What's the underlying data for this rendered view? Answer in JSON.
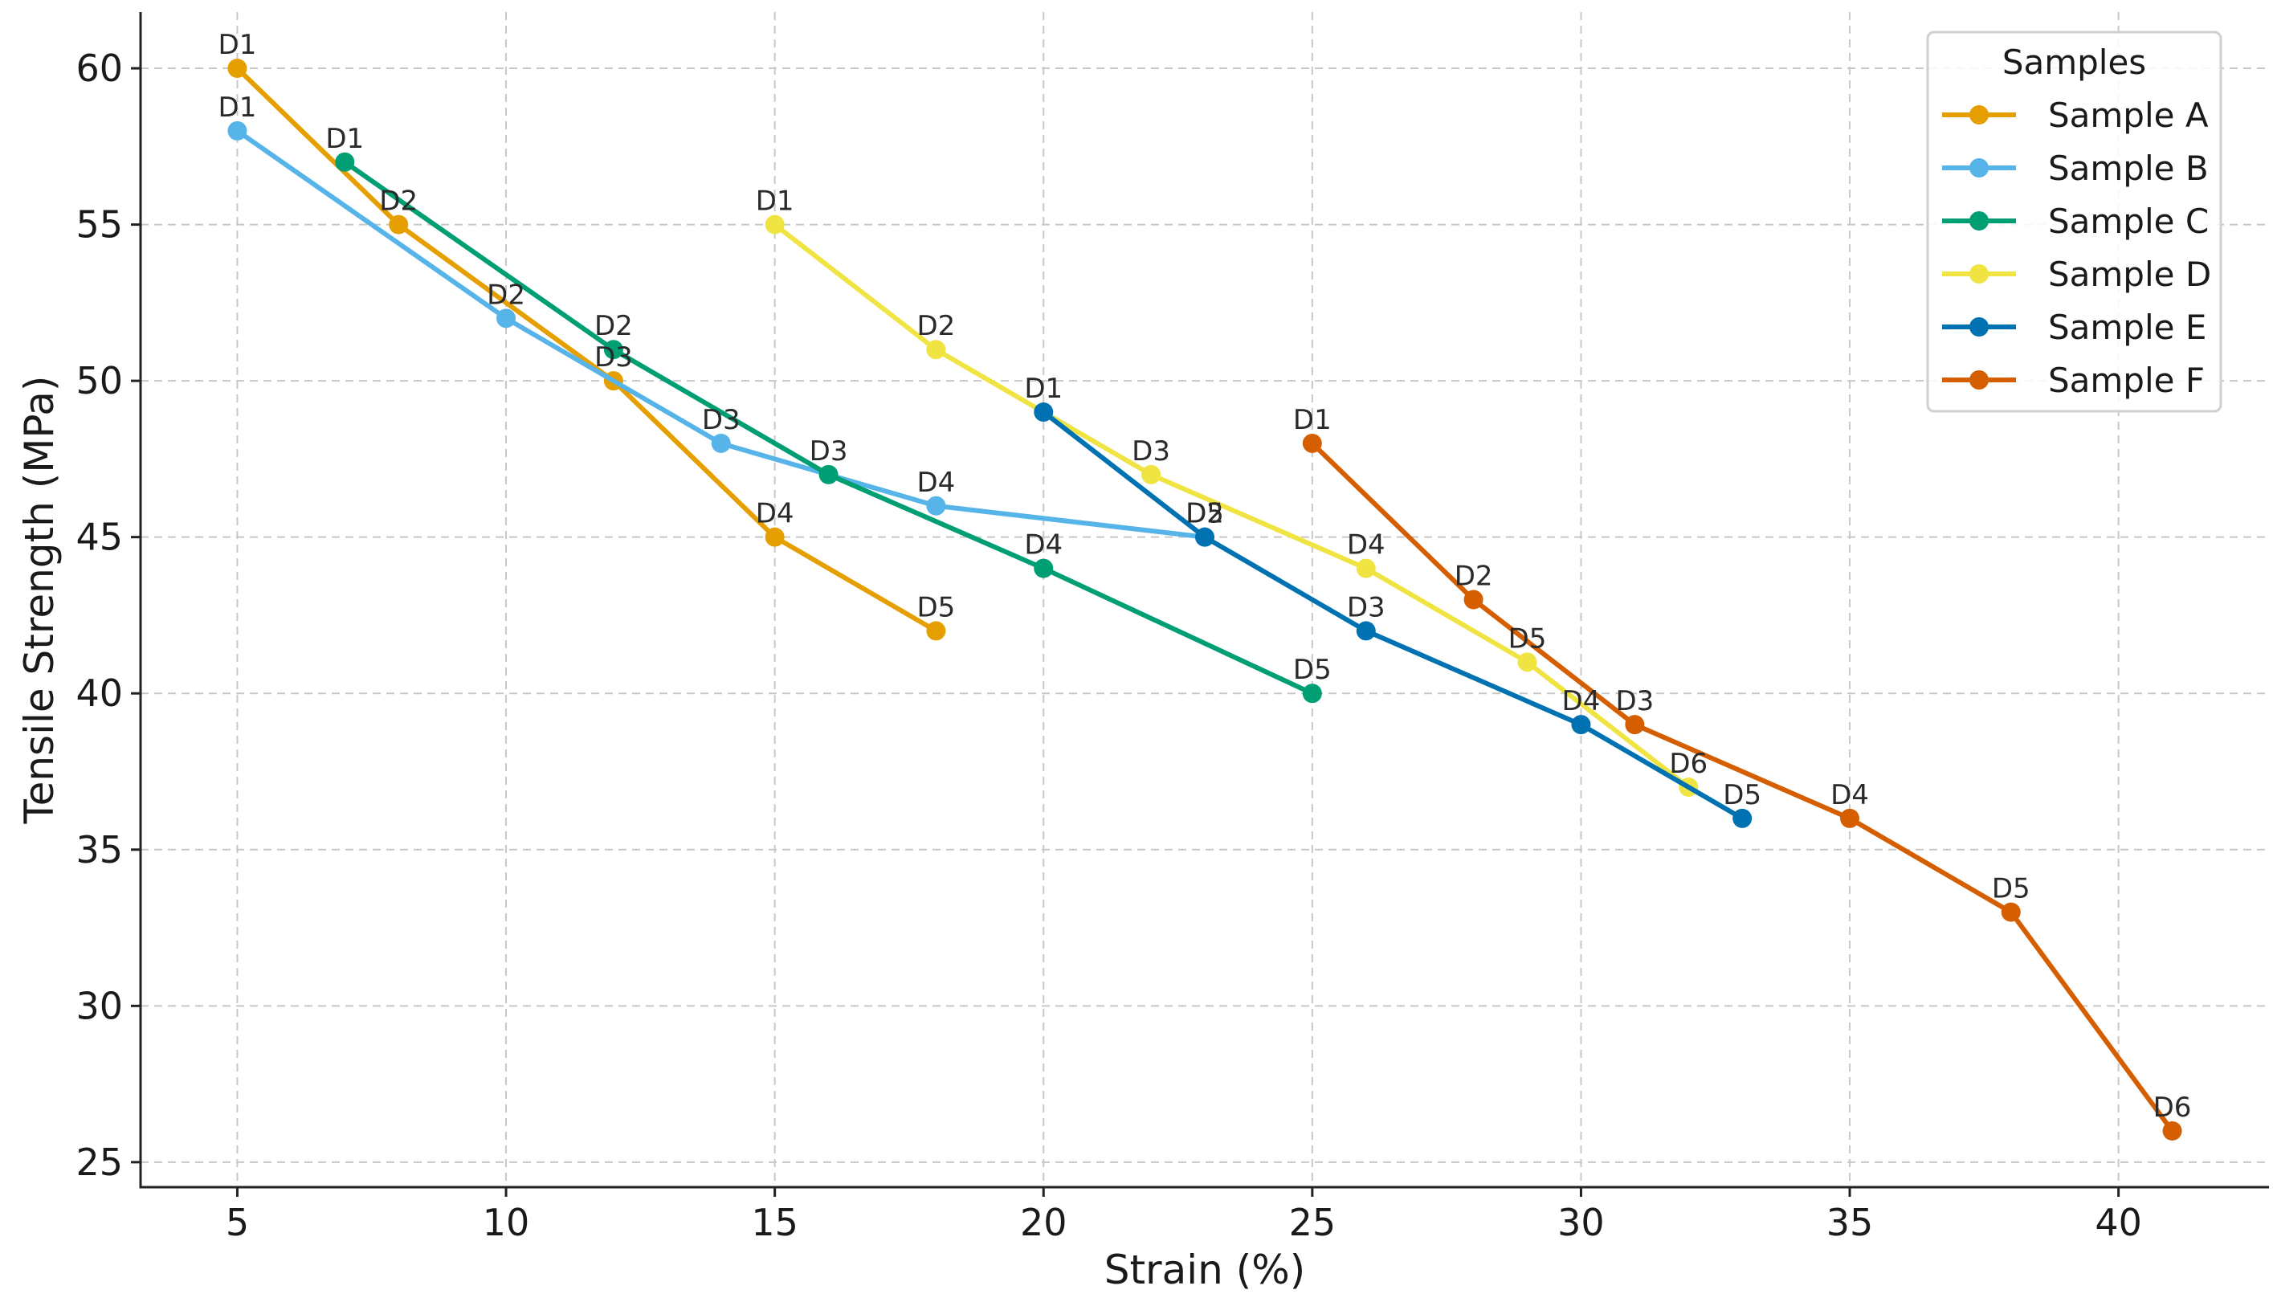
{
  "chart_data": {
    "type": "line",
    "title": "",
    "xlabel": "Strain (%)",
    "ylabel": "Tensile Strength (MPa)",
    "xlim": [
      3.2,
      42.8
    ],
    "ylim": [
      24.2,
      61.8
    ],
    "xticks": [
      5,
      10,
      15,
      20,
      25,
      30,
      35,
      40
    ],
    "yticks": [
      25,
      30,
      35,
      40,
      45,
      50,
      55,
      60
    ],
    "grid": true,
    "legend": {
      "title": "Samples",
      "position": "top-right"
    },
    "series": [
      {
        "name": "Sample A",
        "color": "#E69F00",
        "points": [
          {
            "x": 5,
            "y": 60,
            "label": "D1"
          },
          {
            "x": 8,
            "y": 55,
            "label": "D2"
          },
          {
            "x": 12,
            "y": 50,
            "label": "D3"
          },
          {
            "x": 15,
            "y": 45,
            "label": "D4"
          },
          {
            "x": 18,
            "y": 42,
            "label": "D5"
          }
        ]
      },
      {
        "name": "Sample B",
        "color": "#56B4E9",
        "points": [
          {
            "x": 5,
            "y": 58,
            "label": "D1"
          },
          {
            "x": 10,
            "y": 52,
            "label": "D2"
          },
          {
            "x": 14,
            "y": 48,
            "label": "D3"
          },
          {
            "x": 18,
            "y": 46,
            "label": "D4"
          },
          {
            "x": 23,
            "y": 45,
            "label": "D5"
          }
        ]
      },
      {
        "name": "Sample C",
        "color": "#009E73",
        "points": [
          {
            "x": 7,
            "y": 57,
            "label": "D1"
          },
          {
            "x": 12,
            "y": 51,
            "label": "D2"
          },
          {
            "x": 16,
            "y": 47,
            "label": "D3"
          },
          {
            "x": 20,
            "y": 44,
            "label": "D4"
          },
          {
            "x": 25,
            "y": 40,
            "label": "D5"
          }
        ]
      },
      {
        "name": "Sample D",
        "color": "#F0E442",
        "points": [
          {
            "x": 15,
            "y": 55,
            "label": "D1"
          },
          {
            "x": 18,
            "y": 51,
            "label": "D2"
          },
          {
            "x": 22,
            "y": 47,
            "label": "D3"
          },
          {
            "x": 26,
            "y": 44,
            "label": "D4"
          },
          {
            "x": 29,
            "y": 41,
            "label": "D5"
          },
          {
            "x": 32,
            "y": 37,
            "label": "D6"
          }
        ]
      },
      {
        "name": "Sample E",
        "color": "#0072B2",
        "points": [
          {
            "x": 20,
            "y": 49,
            "label": "D1"
          },
          {
            "x": 23,
            "y": 45,
            "label": "D2"
          },
          {
            "x": 26,
            "y": 42,
            "label": "D3"
          },
          {
            "x": 30,
            "y": 39,
            "label": "D4"
          },
          {
            "x": 33,
            "y": 36,
            "label": "D5"
          }
        ]
      },
      {
        "name": "Sample F",
        "color": "#D55E00",
        "points": [
          {
            "x": 25,
            "y": 48,
            "label": "D1"
          },
          {
            "x": 28,
            "y": 43,
            "label": "D2"
          },
          {
            "x": 31,
            "y": 39,
            "label": "D3"
          },
          {
            "x": 35,
            "y": 36,
            "label": "D4"
          },
          {
            "x": 38,
            "y": 33,
            "label": "D5"
          },
          {
            "x": 41,
            "y": 26,
            "label": "D6"
          }
        ]
      }
    ]
  }
}
